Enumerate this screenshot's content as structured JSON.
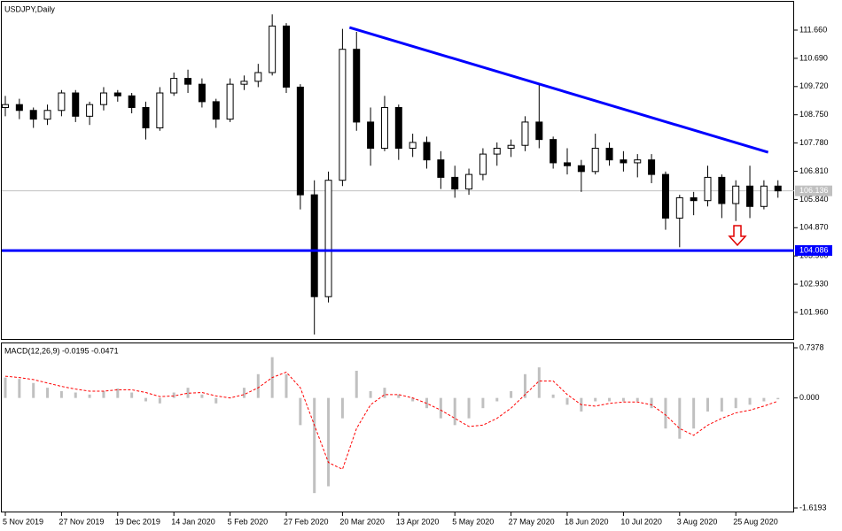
{
  "chart_data": [
    {
      "type": "candlestick",
      "title": "USDJPY,Daily",
      "categories": [
        "5 Nov 2019",
        null,
        null,
        null,
        "27 Nov 2019",
        null,
        null,
        null,
        "19 Dec 2019",
        null,
        null,
        null,
        "14 Jan 2020",
        null,
        null,
        null,
        "5 Feb 2020",
        null,
        null,
        null,
        "27 Feb 2020",
        null,
        null,
        null,
        "20 Mar 2020",
        null,
        null,
        null,
        "13 Apr 2020",
        null,
        null,
        null,
        "5 May 2020",
        null,
        null,
        null,
        "27 May 2020",
        null,
        null,
        null,
        "18 Jun 2020",
        null,
        null,
        null,
        "10 Jul 2020",
        null,
        null,
        null,
        "3 Aug 2020",
        null,
        null,
        null,
        "25 Aug 2020",
        null,
        null,
        null
      ],
      "open": [
        109.0,
        109.1,
        108.9,
        108.6,
        108.9,
        109.5,
        108.7,
        109.1,
        109.5,
        109.4,
        109.0,
        108.3,
        109.5,
        110.0,
        109.8,
        109.2,
        108.6,
        109.8,
        109.9,
        110.2,
        111.8,
        109.7,
        106.0,
        102.5,
        106.5,
        111.0,
        108.5,
        107.6,
        109.0,
        107.6,
        107.8,
        107.2,
        106.6,
        106.2,
        106.7,
        107.4,
        107.6,
        107.7,
        108.5,
        107.9,
        107.1,
        107.0,
        106.8,
        107.6,
        107.2,
        107.1,
        107.2,
        106.7,
        105.2,
        105.9,
        105.8,
        106.6,
        105.7,
        106.3,
        105.6,
        106.3
      ],
      "high": [
        109.4,
        109.3,
        109.0,
        109.1,
        109.6,
        109.6,
        109.2,
        109.7,
        109.6,
        109.5,
        109.2,
        109.7,
        110.2,
        110.3,
        110.0,
        109.3,
        110.0,
        110.1,
        110.5,
        112.2,
        111.9,
        109.8,
        106.5,
        106.8,
        111.7,
        111.6,
        109.0,
        109.4,
        109.1,
        108.1,
        108.0,
        107.5,
        107.0,
        106.9,
        107.6,
        107.8,
        107.9,
        108.7,
        109.8,
        108.0,
        107.6,
        107.2,
        108.1,
        107.8,
        107.5,
        107.4,
        107.4,
        106.8,
        106.0,
        106.1,
        107.0,
        106.7,
        106.5,
        107.0,
        106.5,
        106.5
      ],
      "low": [
        108.7,
        108.6,
        108.3,
        108.4,
        108.7,
        108.5,
        108.4,
        108.9,
        109.2,
        108.8,
        107.9,
        108.2,
        109.4,
        109.5,
        109.0,
        108.3,
        108.5,
        109.6,
        109.7,
        110.1,
        109.5,
        105.5,
        101.2,
        102.3,
        106.3,
        108.2,
        107.0,
        107.5,
        107.2,
        107.3,
        106.9,
        106.2,
        105.9,
        106.0,
        106.5,
        107.0,
        107.3,
        107.5,
        107.6,
        106.9,
        106.7,
        106.1,
        106.7,
        107.0,
        106.8,
        106.6,
        106.4,
        104.8,
        104.2,
        105.3,
        105.6,
        105.2,
        105.1,
        105.2,
        105.5,
        105.9
      ],
      "close": [
        109.1,
        108.9,
        108.6,
        108.9,
        109.5,
        108.7,
        109.1,
        109.5,
        109.4,
        109.0,
        108.3,
        109.5,
        110.0,
        109.8,
        109.2,
        108.6,
        109.8,
        109.9,
        110.2,
        111.8,
        109.7,
        106.0,
        102.5,
        106.5,
        111.0,
        108.5,
        107.6,
        109.0,
        107.6,
        107.8,
        107.2,
        106.6,
        106.2,
        106.7,
        107.4,
        107.6,
        107.7,
        108.5,
        107.9,
        107.1,
        107.0,
        106.8,
        107.6,
        107.2,
        107.1,
        107.2,
        106.7,
        105.2,
        105.9,
        105.8,
        106.6,
        105.7,
        106.3,
        105.6,
        106.3,
        106.136
      ],
      "ylim": [
        101.017,
        112.633
      ],
      "yticks": [
        {
          "value": 101.96,
          "label": "101.960"
        },
        {
          "value": 102.93,
          "label": "102.930"
        },
        {
          "value": 103.9,
          "label": "103.900"
        },
        {
          "value": 104.87,
          "label": "104.870"
        },
        {
          "value": 105.84,
          "label": "105.840"
        },
        {
          "value": 106.81,
          "label": "106.810"
        },
        {
          "value": 107.78,
          "label": "107.780"
        },
        {
          "value": 108.75,
          "label": "108.750"
        },
        {
          "value": 109.72,
          "label": "109.720"
        },
        {
          "value": 110.69,
          "label": "110.690"
        },
        {
          "value": 111.66,
          "label": "111.660"
        }
      ],
      "current_price": 106.136,
      "support_line": {
        "value": 104.086,
        "color": "#0000ff"
      },
      "trendline": {
        "x": [
          24.5,
          54.3
        ],
        "values": [
          111.75,
          107.46
        ],
        "color": "#0000ff"
      }
    },
    {
      "type": "macd",
      "title": "MACD(12,26,9) -0.0195 -0.0471",
      "histogram": [
        0.3,
        0.28,
        0.22,
        0.15,
        0.1,
        0.08,
        0.05,
        0.1,
        0.14,
        0.08,
        -0.05,
        -0.08,
        0.08,
        0.15,
        0.05,
        -0.08,
        0.0,
        0.15,
        0.35,
        0.6,
        0.35,
        -0.4,
        -1.4,
        -1.3,
        -0.3,
        0.4,
        0.1,
        0.15,
        0.05,
        -0.05,
        -0.15,
        -0.3,
        -0.4,
        -0.3,
        -0.15,
        -0.05,
        0.1,
        0.35,
        0.45,
        0.05,
        -0.1,
        -0.2,
        -0.05,
        -0.05,
        -0.05,
        -0.05,
        -0.15,
        -0.45,
        -0.6,
        -0.45,
        -0.2,
        -0.2,
        -0.15,
        -0.1,
        -0.05,
        -0.0195
      ],
      "signal": [
        0.32,
        0.3,
        0.27,
        0.22,
        0.17,
        0.13,
        0.1,
        0.1,
        0.12,
        0.12,
        0.08,
        0.02,
        0.03,
        0.07,
        0.08,
        0.03,
        0.0,
        0.05,
        0.15,
        0.3,
        0.38,
        0.15,
        -0.4,
        -0.95,
        -1.05,
        -0.45,
        -0.1,
        0.05,
        0.05,
        0.0,
        -0.08,
        -0.18,
        -0.3,
        -0.42,
        -0.4,
        -0.3,
        -0.15,
        0.05,
        0.25,
        0.25,
        0.05,
        -0.1,
        -0.12,
        -0.08,
        -0.06,
        -0.06,
        -0.1,
        -0.25,
        -0.45,
        -0.55,
        -0.4,
        -0.3,
        -0.22,
        -0.18,
        -0.12,
        -0.0471
      ],
      "histogram_color": "#c0c0c0",
      "signal_color": "#ff0000",
      "ylim": [
        -1.6193,
        0.7378
      ],
      "yticks": [
        -1.6193,
        {
          "value": 0,
          "label": "0.000"
        },
        0.7378
      ]
    }
  ]
}
